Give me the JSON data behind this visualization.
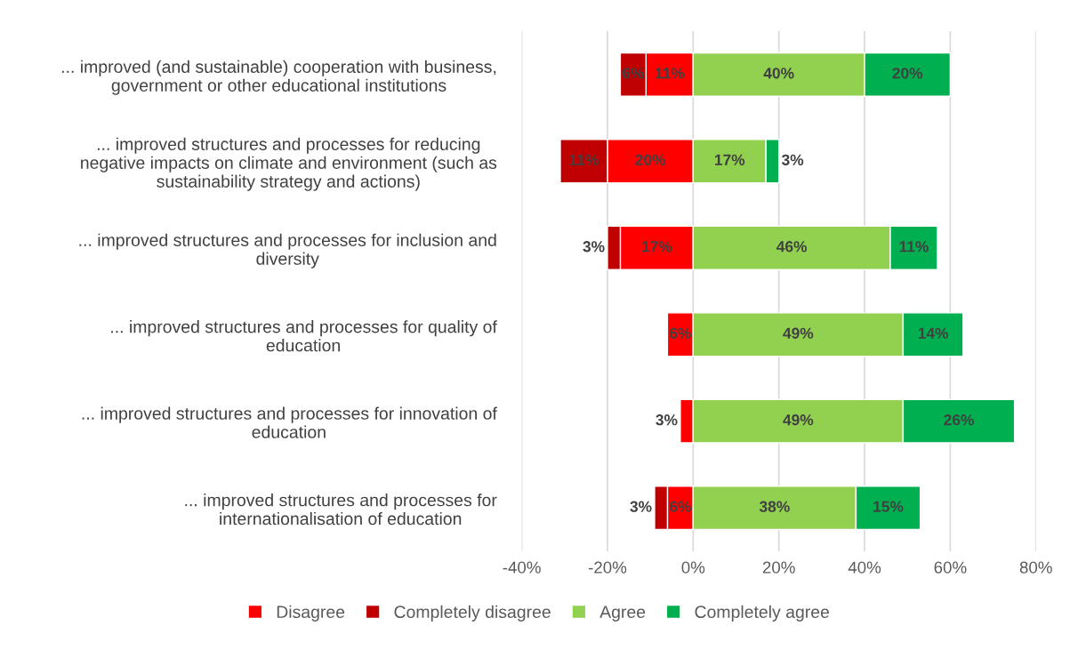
{
  "chart_data": {
    "type": "bar",
    "orientation": "horizontal",
    "categories": [
      "... improved (and sustainable) cooperation with business, government or other educational institutions",
      "... improved structures and processes for reducing negative impacts on climate and environment (such as sustainability strategy and actions)",
      "... improved structures and processes for inclusion and diversity",
      "... improved structures and processes for quality of education",
      "... improved structures and processes for innovation of education",
      "... improved structures and processes for internationalisation of education"
    ],
    "series": [
      {
        "name": "Disagree",
        "color": "#ff0000",
        "values": [
          11,
          20,
          17,
          6,
          3,
          6
        ],
        "base": [
          -11,
          -20,
          -17,
          -6,
          -3,
          -6
        ],
        "value_labels": [
          "11%",
          "20%",
          "17%",
          "6%",
          "3%",
          "6%"
        ]
      },
      {
        "name": "Completely disagree",
        "color": "#c00000",
        "values": [
          6,
          11,
          3,
          null,
          null,
          3
        ],
        "base": [
          -17,
          -31,
          -20,
          null,
          null,
          -9
        ],
        "value_labels": [
          "6%",
          "11%",
          "3%",
          null,
          null,
          "3%"
        ]
      },
      {
        "name": "Agree",
        "color": "#92d050",
        "values": [
          40,
          17,
          46,
          49,
          49,
          38
        ],
        "base": [
          0,
          0,
          0,
          0,
          0,
          0
        ],
        "value_labels": [
          "40%",
          "17%",
          "46%",
          "49%",
          "49%",
          "38%"
        ]
      },
      {
        "name": "Completely agree",
        "color": "#00b050",
        "values": [
          20,
          3,
          11,
          14,
          26,
          15
        ],
        "base": [
          40,
          17,
          46,
          49,
          49,
          38
        ],
        "value_labels": [
          "20%",
          "3%",
          "11%",
          "14%",
          "26%",
          "15%"
        ]
      }
    ],
    "xlim": [
      -40,
      80
    ],
    "xticks": [
      {
        "value": -40,
        "label": "-40%"
      },
      {
        "value": -20,
        "label": "-20%"
      },
      {
        "value": 0,
        "label": "0%"
      },
      {
        "value": 20,
        "label": "20%"
      },
      {
        "value": 40,
        "label": "40%"
      },
      {
        "value": 60,
        "label": "60%"
      },
      {
        "value": 80,
        "label": "80%"
      }
    ],
    "grid": "x",
    "legend": "bottom"
  }
}
